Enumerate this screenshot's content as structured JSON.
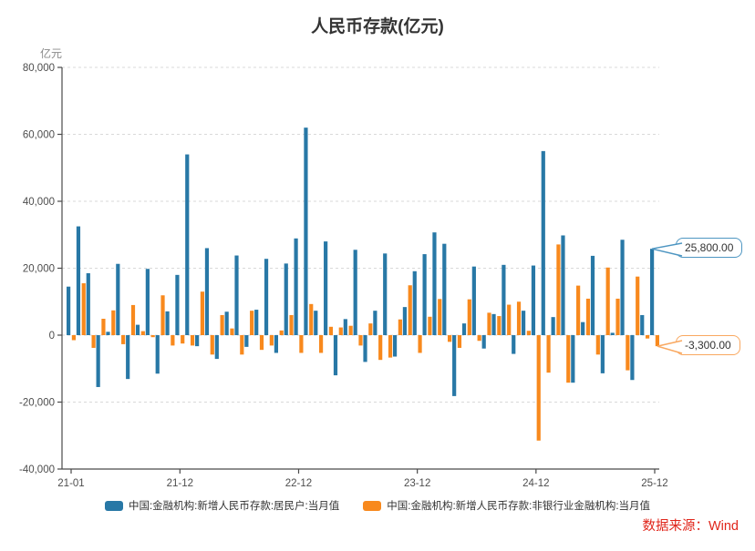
{
  "title": "人民币存款(亿元)",
  "y_axis": {
    "unit": "亿元",
    "tick_labels": [
      "80,000",
      "60,000",
      "40,000",
      "20,000",
      "0",
      "-20,000",
      "-40,000"
    ],
    "tick_values": [
      80000,
      60000,
      40000,
      20000,
      0,
      -20000,
      -40000
    ]
  },
  "x_axis": {
    "tick_labels": [
      "21-01",
      "21-12",
      "22-12",
      "23-12",
      "24-12",
      "25-12"
    ]
  },
  "legend": [
    {
      "label": "中国:金融机构:新增人民币存款:居民户:当月值",
      "color": "#2878A6"
    },
    {
      "label": "中国:金融机构:新增人民币存款:非银行业金融机构:当月值",
      "color": "#F8891D"
    }
  ],
  "callouts": [
    {
      "text": "25,800.00",
      "border_color": "#4E96C2"
    },
    {
      "text": "-3,300.00",
      "border_color": "#F9A860"
    }
  ],
  "source": "数据来源：Wind",
  "source_color": "#E0251A",
  "colors": {
    "grid": "#d9d9d9",
    "axis": "#4a4a4a",
    "tick_text": "#4d4d4d"
  },
  "chart_data": {
    "type": "bar",
    "title": "人民币存款(亿元)",
    "ylabel": "亿元",
    "ylim": [
      -40000,
      80000
    ],
    "grid": "dashed-horizontal",
    "legend_position": "bottom",
    "x": [
      "21-01",
      "21-02",
      "21-03",
      "21-04",
      "21-05",
      "21-06",
      "21-07",
      "21-08",
      "21-09",
      "21-10",
      "21-11",
      "21-12",
      "22-01",
      "22-02",
      "22-03",
      "22-04",
      "22-05",
      "22-06",
      "22-07",
      "22-08",
      "22-09",
      "22-10",
      "22-11",
      "22-12",
      "23-01",
      "23-02",
      "23-03",
      "23-04",
      "23-05",
      "23-06",
      "23-07",
      "23-08",
      "23-09",
      "23-10",
      "23-11",
      "23-12",
      "24-01",
      "24-02",
      "24-03",
      "24-04",
      "24-05",
      "24-06",
      "24-07",
      "24-08",
      "24-09",
      "24-10",
      "24-11",
      "24-12",
      "25-01",
      "25-02",
      "25-03",
      "25-04",
      "25-05",
      "25-06",
      "25-07",
      "25-08",
      "25-09",
      "25-10",
      "25-11",
      "25-12"
    ],
    "series": [
      {
        "name": "中国:金融机构:新增人民币存款:居民户:当月值",
        "color": "#2878A6",
        "values": [
          14500,
          32500,
          18500,
          -15500,
          1000,
          21300,
          -13100,
          3100,
          19800,
          -11500,
          7100,
          18000,
          54000,
          -3300,
          26000,
          -7100,
          7000,
          23800,
          -3500,
          7600,
          22800,
          -5300,
          21400,
          28900,
          62000,
          7300,
          28000,
          -12000,
          4800,
          25500,
          -8000,
          7300,
          24400,
          -6400,
          8400,
          19100,
          24200,
          30700,
          27300,
          -18200,
          3500,
          20500,
          -4000,
          6300,
          21000,
          -5600,
          7300,
          20800,
          55000,
          5400,
          29800,
          -14200,
          3900,
          23700,
          -11400,
          700,
          28500,
          -13400,
          6000,
          25800
        ]
      },
      {
        "name": "中国:金融机构:新增人民币存款:非银行业金融机构:当月值",
        "color": "#F8891D",
        "values": [
          -1500,
          15500,
          -3800,
          4900,
          7400,
          -2700,
          9000,
          1200,
          -600,
          11900,
          -3100,
          -2500,
          -3100,
          13000,
          -5800,
          6000,
          2000,
          -5800,
          7300,
          -4400,
          -3100,
          1400,
          6000,
          -5300,
          9300,
          -5300,
          2500,
          2300,
          2800,
          -3100,
          3500,
          -7400,
          -6700,
          4700,
          14900,
          -5300,
          5500,
          10800,
          -2000,
          -3800,
          10700,
          -1700,
          6700,
          5700,
          9100,
          10000,
          1300,
          -31500,
          -11200,
          27100,
          -14200,
          14800,
          10900,
          -5800,
          20200,
          10900,
          -10500,
          17500,
          -1000,
          -3300
        ]
      }
    ],
    "annotations": [
      {
        "target": "25-12",
        "series": 0,
        "value": 25800.0,
        "label": "25,800.00"
      },
      {
        "target": "25-12",
        "series": 1,
        "value": -3300.0,
        "label": "-3,300.00"
      }
    ]
  }
}
